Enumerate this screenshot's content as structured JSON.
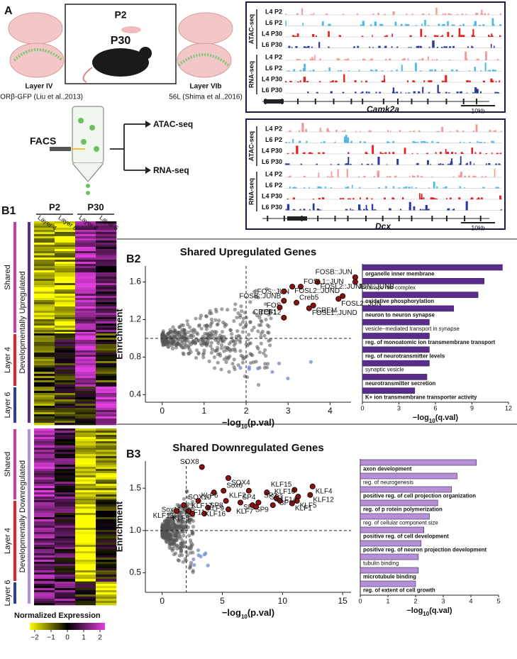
{
  "panel_labels": [
    "A",
    "B1",
    "B2",
    "B3"
  ],
  "panel_a": {
    "ages": [
      "P2",
      "P30"
    ],
    "layers": [
      {
        "name": "Layer IV",
        "source": "RORβ-GFP (Liu et al.,2013)"
      },
      {
        "name": "Layer VIb",
        "source": "56L (Shima et al.,2016)"
      }
    ],
    "facs": "FACS",
    "assays": [
      "ATAC-seq",
      "RNA-seq"
    ]
  },
  "tracks": {
    "assays": [
      "ATAC-seq",
      "RNA-seq"
    ],
    "samples": [
      "L4 P2",
      "L6 P2",
      "L4 P30",
      "L6 P30"
    ],
    "colors": [
      "#f29a9a",
      "#4fb8e6",
      "#e3221f",
      "#2b3a9c"
    ],
    "genes": [
      "Camk2a",
      "Dcx"
    ],
    "scale": "10kb"
  },
  "heatmap": {
    "ages": [
      "P2",
      "P30"
    ],
    "layers": [
      "Layer 4",
      "Layer 6"
    ],
    "groups": [
      "Developmentally Upregulated",
      "Developmentally Downregulated"
    ],
    "subgroups": [
      "Shared",
      "Layer 4",
      "Layer 6"
    ],
    "legend_title": "Normalized Expression",
    "ticks": [
      {
        "value": -2,
        "label": "−2"
      },
      {
        "value": -1,
        "label": "−1"
      },
      0,
      1,
      2
    ]
  },
  "chart_data": [
    {
      "type": "scatter",
      "title": "Shared Upregulated Genes",
      "xlabel": [
        "−log",
        "10",
        "(p.val)"
      ],
      "ylabel": "Enrichment",
      "xlim": [
        -0.4,
        4.5
      ],
      "ylim": [
        0.32,
        1.77
      ],
      "xticks": [
        0,
        1,
        2,
        3,
        4
      ],
      "yticks": [
        0.4,
        0.8,
        1.2,
        1.6
      ],
      "threshold": {
        "x": 2,
        "y": 1
      },
      "color": "#8b1010",
      "labels": [
        "FOSB::JUN",
        "FOSL2::JUNB",
        "FOS::JUN",
        "FOSL1::JUN",
        "FOSB::JUNB",
        "JUN::JUNB",
        "FOSL2::JUND",
        "FOSL2::JUN",
        "FOS",
        "Creb5",
        "CREB1",
        "FOSL1::JUND",
        "TCF12",
        "CREM"
      ],
      "x": [
        4.6,
        3.7,
        3.1,
        3.3,
        2.9,
        4.6,
        4.3,
        4.2,
        2.9,
        3.2,
        2.8,
        3.5,
        2.9,
        3.6
      ],
      "y": [
        1.65,
        1.6,
        1.55,
        1.55,
        1.5,
        1.6,
        1.45,
        1.42,
        1.4,
        1.38,
        1.33,
        1.32,
        1.22,
        1.35
      ]
    },
    {
      "type": "bar",
      "orientation": "horizontal",
      "xlabel": [
        "−log",
        "10",
        "(q.val)"
      ],
      "color": "#5a2d8c",
      "xlim": [
        0,
        12
      ],
      "xticks": [
        0,
        3,
        6,
        9,
        12
      ],
      "categories": [
        "organelle inner membrane",
        "transpo rter complex",
        "oxidative phosphorylation",
        "neuron to neuron synapse",
        "vesicle−mediated transport in synapse",
        "reg. of monoatomic ion transmembrane transport",
        "reg. of neurotransmitter levels",
        "synaptic vesicle",
        "neurotransmitter secretion",
        "K+ ion transmembrane transporter activity"
      ],
      "values": [
        11.5,
        10,
        9.5,
        7.5,
        5.5,
        5.5,
        5.5,
        5.5,
        5.3,
        4.3
      ]
    },
    {
      "type": "scatter",
      "title": "Shared Downregulated Genes",
      "xlabel": [
        "−log",
        "10",
        "(p.val)"
      ],
      "ylabel": "Enrichment",
      "xlim": [
        -1.4,
        15.7
      ],
      "ylim": [
        0.27,
        1.82
      ],
      "xticks": [
        0,
        5,
        10,
        15
      ],
      "yticks": [
        0.5,
        {
          "value": 1,
          "label": "1.0"
        },
        1.5
      ],
      "threshold": {
        "x": 2,
        "y": 1
      },
      "color": "#8b1010",
      "labels": [
        "SOX8",
        "SOX4",
        "SOX10",
        "Sox6",
        "KLF2",
        "SP3",
        "KLF15",
        "KLF4",
        "Sox11",
        "KLF6",
        "SP8",
        "SP1",
        "KLF10",
        "KLF12",
        "KLF13",
        "KLF17",
        "KLF11",
        "SP5",
        "SP4",
        "KLF5",
        "KLF3",
        "KLF9",
        "KLF16",
        "SP9",
        "SP2",
        "KLF1",
        "KLF7",
        "KLF14"
      ],
      "x": [
        3.3,
        5.5,
        4.3,
        5.1,
        7.2,
        8.7,
        11,
        12.5,
        1.8,
        3,
        5.3,
        9.5,
        11.3,
        12.3,
        1.2,
        2.2,
        3.8,
        6.5,
        8,
        11.2,
        2.5,
        3.5,
        5.5,
        7.5,
        9.8,
        10.8,
        7.8,
        9.2
      ],
      "y": [
        1.75,
        1.62,
        1.45,
        1.47,
        1.47,
        1.45,
        1.48,
        1.52,
        1.3,
        1.35,
        1.35,
        1.38,
        1.4,
        1.42,
        1.23,
        1.23,
        1.27,
        1.33,
        1.33,
        1.35,
        1.2,
        1.2,
        1.25,
        1.3,
        1.35,
        1.32,
        1.28,
        1.3
      ]
    },
    {
      "type": "bar",
      "orientation": "horizontal",
      "xlabel": [
        "−log",
        "10",
        "(q.val)"
      ],
      "color": "#b590d4",
      "xlim": [
        0,
        5
      ],
      "xticks": [
        0,
        1,
        2,
        3,
        4,
        5
      ],
      "categories": [
        "axon development",
        "reg. of neurogenesis",
        "positive reg. of cell projection organization",
        "reg. of p rotein polymerization",
        "reg. of cellular component size",
        "positive reg. of cell development",
        "positive reg. of neuron projection development",
        "tubulin binding",
        "microtubule binding",
        "reg. of extent of cell growth"
      ],
      "values": [
        4.2,
        3.5,
        3.3,
        2.8,
        2.5,
        2.3,
        2.2,
        2.1,
        2.1,
        2.0
      ]
    }
  ]
}
